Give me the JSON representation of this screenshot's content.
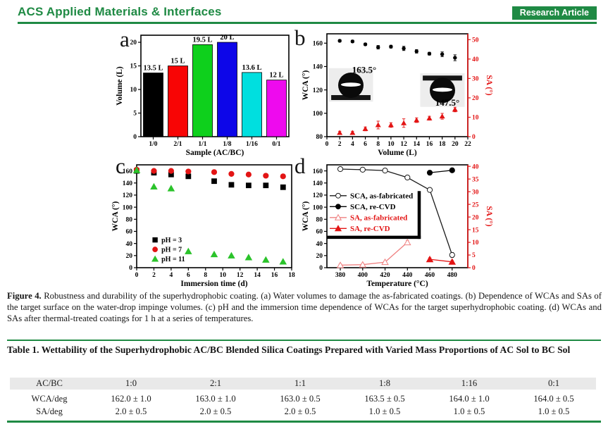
{
  "colors": {
    "green": "#1f8a44",
    "chart_red": "#e31515",
    "table_header_bg": "#e9e9e9"
  },
  "header": {
    "journal": "ACS Applied Materials & Interfaces",
    "badge": "Research Article"
  },
  "figure": {
    "caption_label": "Figure 4.",
    "caption_text": "Robustness and durability of the superhydrophobic coating. (a) Water volumes to damage the as-fabricated coatings. (b) Dependence of WCAs and SAs of the target surface on the water-drop impinge volumes. (c) pH and the immersion time dependence of WCAs for the target superhydrophobic coating. (d) WCAs and SAs after thermal-treated coatings for 1 h at a series of temperatures."
  },
  "chart_data": [
    {
      "panel": "a",
      "type": "bar",
      "xlabel": "Sample (AC/BC)",
      "categories": [
        "1/0",
        "2/1",
        "1/1",
        "1/8",
        "1/16",
        "0/1"
      ],
      "values": [
        13.5,
        15,
        19.5,
        20,
        13.6,
        12
      ],
      "bar_labels": [
        "13.5 L",
        "15 L",
        "19.5 L",
        "20 L",
        "13.6 L",
        "12 L"
      ],
      "bar_colors": [
        "#000000",
        "#f80505",
        "#0ed01c",
        "#0d06e8",
        "#00dfdf",
        "#ee0aee"
      ],
      "yleft": {
        "label": "Volume (L)",
        "lim": [
          0,
          21.5
        ],
        "ticks": [
          0,
          5,
          10,
          15,
          20
        ],
        "color": "#000000"
      },
      "margins": {
        "l": 62,
        "r": 20,
        "t": 12,
        "b": 30
      }
    },
    {
      "panel": "b",
      "type": "scatter",
      "xlabel": "Volume (L)",
      "xlim": [
        0,
        22
      ],
      "xticks": [
        0,
        2,
        4,
        6,
        8,
        10,
        12,
        14,
        16,
        18,
        20,
        22
      ],
      "yleft": {
        "label": "WCA (°)",
        "lim": [
          80,
          168
        ],
        "ticks": [
          80,
          100,
          120,
          140,
          160
        ],
        "color": "#000000"
      },
      "yright": {
        "label": "SA (°)",
        "lim": [
          0,
          53
        ],
        "ticks": [
          0,
          10,
          20,
          30,
          40,
          50
        ],
        "color": "#e31515"
      },
      "series": [
        {
          "name": "WCA",
          "axis": "left",
          "marker": "circle",
          "fill": true,
          "size": 2.2,
          "color": "#000000",
          "line": false,
          "x": [
            2,
            4,
            6,
            8,
            10,
            12,
            14,
            16,
            18,
            20
          ],
          "y": [
            162,
            161.5,
            159,
            156.5,
            157,
            155.5,
            153,
            151,
            150.5,
            147.5
          ],
          "err": [
            1,
            1,
            1,
            1.5,
            1.2,
            1.8,
            1.5,
            1.2,
            2,
            2.5
          ]
        },
        {
          "name": "SA",
          "axis": "right",
          "marker": "triangle",
          "fill": true,
          "size": 3,
          "color": "#e31515",
          "line": false,
          "x": [
            2,
            4,
            6,
            8,
            10,
            12,
            14,
            16,
            18,
            20
          ],
          "y": [
            2,
            2,
            4,
            6,
            6,
            7,
            8.5,
            9.5,
            10.5,
            14
          ],
          "err": [
            0.8,
            0.8,
            1,
            2,
            1.2,
            2.2,
            1.2,
            1,
            1.5,
            1.2
          ]
        }
      ],
      "annotations": [
        {
          "type": "droplet",
          "fx": 0.17,
          "fy": 0.5,
          "r": 18,
          "bar": "bottom"
        },
        {
          "type": "text",
          "text": "163.5°",
          "fx": 0.265,
          "fy": 0.38,
          "size": 13
        },
        {
          "type": "droplet",
          "fx": 0.82,
          "fy": 0.55,
          "r": 18,
          "bar": "top"
        },
        {
          "type": "text",
          "text": "147.5°",
          "fx": 0.855,
          "fy": 0.7,
          "size": 13
        }
      ],
      "margins": {
        "l": 34,
        "r": 58,
        "t": 10,
        "b": 30
      }
    },
    {
      "panel": "c",
      "type": "scatter",
      "xlabel": "Immersion time (d)",
      "xlim": [
        0,
        18
      ],
      "xticks": [
        0,
        2,
        4,
        6,
        8,
        10,
        12,
        14,
        16,
        18
      ],
      "yleft": {
        "label": "WCA (°)",
        "lim": [
          0,
          170
        ],
        "ticks": [
          0,
          20,
          40,
          60,
          80,
          100,
          120,
          140,
          160
        ],
        "color": "#000000"
      },
      "series": [
        {
          "name": "pH = 3",
          "axis": "left",
          "marker": "square",
          "fill": true,
          "size": 3.4,
          "color": "#000000",
          "line": false,
          "x": [
            0,
            2,
            4,
            6,
            9,
            11,
            13,
            15,
            17
          ],
          "y": [
            160,
            157,
            154,
            151,
            143,
            137,
            136,
            136,
            133
          ]
        },
        {
          "name": "pH = 7",
          "axis": "left",
          "marker": "circle",
          "fill": true,
          "size": 3.6,
          "color": "#e31515",
          "line": false,
          "x": [
            0,
            2,
            4,
            6,
            9,
            11,
            13,
            15,
            17
          ],
          "y": [
            162,
            160,
            160,
            159,
            158,
            155,
            154,
            152,
            151
          ]
        },
        {
          "name": "pH = 11",
          "axis": "left",
          "marker": "triangle",
          "fill": true,
          "size": 4.2,
          "color": "#2bc32b",
          "line": false,
          "x": [
            0,
            2,
            4,
            6,
            9,
            11,
            13,
            15,
            17
          ],
          "y": [
            161,
            134,
            131,
            27,
            22,
            20,
            17,
            13,
            10
          ]
        }
      ],
      "legend": {
        "fx": 0.096,
        "fy": 0.73,
        "dy": 13.5,
        "fontSize": 10,
        "showLine": false,
        "entries": [
          {
            "label": "pH = 3",
            "marker": "square",
            "fill": true,
            "color": "#000000",
            "size": 3.2
          },
          {
            "label": "pH = 7",
            "marker": "circle",
            "fill": true,
            "color": "#e31515",
            "size": 3.4
          },
          {
            "label": "pH = 11",
            "marker": "triangle",
            "fill": true,
            "color": "#2bc32b",
            "size": 4
          }
        ]
      },
      "margins": {
        "l": 56,
        "r": 16,
        "t": 10,
        "b": 30
      }
    },
    {
      "panel": "d",
      "type": "scatter",
      "xlabel": "Temperature (°C)",
      "xlim": [
        368,
        494
      ],
      "xticks": [
        380,
        400,
        420,
        440,
        460,
        480
      ],
      "yleft": {
        "label": "WCA (°)",
        "lim": [
          0,
          170
        ],
        "ticks": [
          0,
          20,
          40,
          60,
          80,
          100,
          120,
          140,
          160
        ],
        "color": "#000000"
      },
      "yright": {
        "label": "SA (°)",
        "lim": [
          0,
          40.6
        ],
        "ticks": [
          0,
          5,
          10,
          15,
          20,
          25,
          30,
          35,
          40
        ],
        "color": "#e31515"
      },
      "series": [
        {
          "name": "SCA, as-fabricated",
          "axis": "left",
          "marker": "circle",
          "fill": false,
          "size": 3.6,
          "color": "#1a1a1a",
          "line": true,
          "x": [
            380,
            400,
            420,
            440,
            460,
            480
          ],
          "y": [
            163,
            162,
            160.5,
            149,
            128.5,
            21
          ],
          "err": [
            2,
            2,
            2,
            3.5,
            2,
            4
          ]
        },
        {
          "name": "SCA, re-CVD",
          "axis": "left",
          "marker": "circle",
          "fill": true,
          "size": 3.6,
          "color": "#000000",
          "line": true,
          "x": [
            460,
            480
          ],
          "y": [
            157,
            161
          ],
          "err": [
            2.5,
            2
          ]
        },
        {
          "name": "SA, as-fabricated",
          "axis": "right",
          "marker": "triangle",
          "fill": false,
          "size": 4.2,
          "color": "#ef8080",
          "line": true,
          "x": [
            380,
            400,
            420,
            440
          ],
          "y": [
            1,
            1.2,
            2.2,
            10
          ],
          "err": [
            0.5,
            0.5,
            0.5,
            0.8
          ]
        },
        {
          "name": "SA, re-CVD",
          "axis": "right",
          "marker": "triangle",
          "fill": true,
          "size": 4.2,
          "color": "#e31515",
          "line": true,
          "x": [
            460,
            480
          ],
          "y": [
            3.3,
            2.3
          ],
          "err": [
            0.6,
            0.5
          ]
        }
      ],
      "legend": {
        "fx": 0.02,
        "fy": 0.3,
        "dy": 15.5,
        "fontSize": 11,
        "showLine": true,
        "entries": [
          {
            "label": "SCA, as-fabricated",
            "marker": "circle",
            "fill": false,
            "color": "#1a1a1a",
            "textColor": "#000000",
            "size": 3.4
          },
          {
            "label": "SCA, re-CVD",
            "marker": "circle",
            "fill": true,
            "color": "#000000",
            "textColor": "#000000",
            "size": 3.4
          },
          {
            "label": "SA, as-fabricated",
            "marker": "triangle",
            "fill": false,
            "color": "#ef8080",
            "textColor": "#e31515",
            "size": 4
          },
          {
            "label": "SA, re-CVD",
            "marker": "triangle",
            "fill": true,
            "color": "#e31515",
            "textColor": "#e31515",
            "size": 4
          }
        ],
        "shadow": {
          "x0f": 0.0,
          "x1f": 0.655,
          "y0f": 0.255,
          "y1f": 0.705
        }
      },
      "margins": {
        "l": 34,
        "r": 58,
        "t": 10,
        "b": 30
      }
    }
  ],
  "table": {
    "title": "Table 1. Wettability of the Superhydrophobic AC/BC Blended Silica Coatings Prepared with Varied Mass Proportions of AC Sol to BC Sol",
    "header": [
      "AC/BC",
      "1:0",
      "2:1",
      "1:1",
      "1:8",
      "1:16",
      "0:1"
    ],
    "rows": [
      [
        "WCA/deg",
        "162.0 ± 1.0",
        "163.0 ± 1.0",
        "163.0 ± 0.5",
        "163.5 ± 0.5",
        "164.0 ± 1.0",
        "164.0 ± 0.5"
      ],
      [
        "SA/deg",
        "2.0 ± 0.5",
        "2.0 ± 0.5",
        "2.0 ± 0.5",
        "1.0 ± 0.5",
        "1.0 ± 0.5",
        "1.0 ± 0.5"
      ]
    ]
  }
}
